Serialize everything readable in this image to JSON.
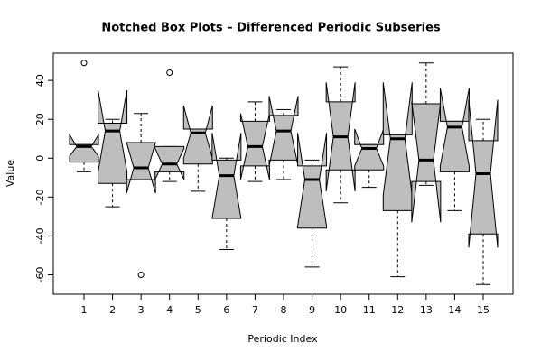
{
  "chart_data": {
    "type": "boxplot",
    "title": "Notched Box Plots – Differenced Periodic Subseries",
    "x_label": "Periodic Index",
    "y_label": "Value",
    "categories": [
      "1",
      "2",
      "3",
      "4",
      "5",
      "6",
      "7",
      "8",
      "9",
      "10",
      "11",
      "12",
      "13",
      "14",
      "15"
    ],
    "ylim": [
      -70,
      54
    ],
    "yticks": [
      -60,
      -40,
      -20,
      0,
      20,
      40
    ],
    "color": "#bebebe",
    "boxes": [
      {
        "min": -7,
        "q1": -2,
        "median": 6,
        "q3": 7,
        "max": 7,
        "notch_low": 1,
        "notch_high": 12,
        "outliers": [
          49
        ]
      },
      {
        "min": -25,
        "q1": -13,
        "median": 14,
        "q3": 18,
        "max": 20,
        "notch_low": -7,
        "notch_high": 35,
        "outliers": []
      },
      {
        "min": -11,
        "q1": -11,
        "median": -5,
        "q3": 8,
        "max": 23,
        "notch_low": -18,
        "notch_high": 8,
        "outliers": [
          -60
        ]
      },
      {
        "min": -12,
        "q1": -7,
        "median": -3,
        "q3": 6,
        "max": 6,
        "notch_low": -11,
        "notch_high": 5,
        "outliers": [
          44
        ]
      },
      {
        "min": -17,
        "q1": -3,
        "median": 13,
        "q3": 15,
        "max": 15,
        "notch_low": 0,
        "notch_high": 27,
        "outliers": []
      },
      {
        "min": -47,
        "q1": -31,
        "median": -9,
        "q3": -1,
        "max": 0,
        "notch_low": -31,
        "notch_high": 13,
        "outliers": []
      },
      {
        "min": -12,
        "q1": -4,
        "median": 6,
        "q3": 19,
        "max": 29,
        "notch_low": -11,
        "notch_high": 23,
        "outliers": []
      },
      {
        "min": -11,
        "q1": -1,
        "median": 14,
        "q3": 22,
        "max": 25,
        "notch_low": -4,
        "notch_high": 32,
        "outliers": []
      },
      {
        "min": -56,
        "q1": -36,
        "median": -11,
        "q3": -4,
        "max": -1,
        "notch_low": -35,
        "notch_high": 13,
        "outliers": []
      },
      {
        "min": -23,
        "q1": -6,
        "median": 11,
        "q3": 29,
        "max": 47,
        "notch_low": -17,
        "notch_high": 39,
        "outliers": []
      },
      {
        "min": -15,
        "q1": -6,
        "median": 5,
        "q3": 7,
        "max": 7,
        "notch_low": -4,
        "notch_high": 15,
        "outliers": []
      },
      {
        "min": -61,
        "q1": -27,
        "median": 10,
        "q3": 12,
        "max": 12,
        "notch_low": -19,
        "notch_high": 39,
        "outliers": []
      },
      {
        "min": -14,
        "q1": -12,
        "median": -1,
        "q3": 28,
        "max": 49,
        "notch_low": -33,
        "notch_high": 29,
        "outliers": []
      },
      {
        "min": -27,
        "q1": -7,
        "median": 16,
        "q3": 19,
        "max": 19,
        "notch_low": -4,
        "notch_high": 36,
        "outliers": []
      },
      {
        "min": -65,
        "q1": -39,
        "median": -8,
        "q3": 9,
        "max": 20,
        "notch_low": -46,
        "notch_high": 30,
        "outliers": []
      }
    ]
  }
}
